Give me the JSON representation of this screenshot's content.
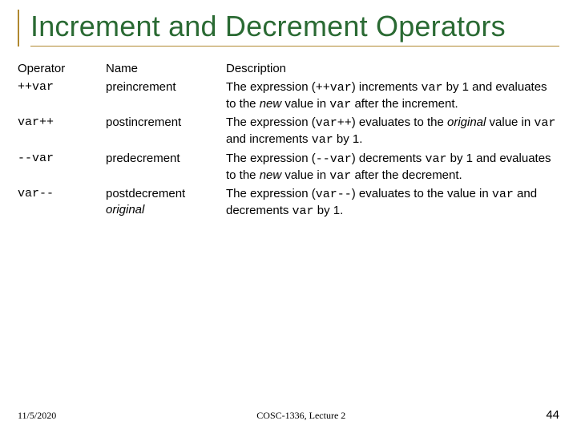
{
  "title_color": "#2a6a33",
  "title": "Increment and Decrement Operators",
  "columns": {
    "operator": "Operator",
    "name": "Name",
    "description": "Description"
  },
  "rows": [
    {
      "op": "++var",
      "name": "preincrement",
      "desc_pre": "The expression (",
      "desc_code1": "++var",
      "desc_mid1": ") increments ",
      "desc_code2": "var",
      "desc_mid2": " by 1 and evaluates to the ",
      "desc_ital": "new",
      "desc_mid3": " value in ",
      "desc_code3": "var",
      "desc_post": " after the increment."
    },
    {
      "op": "var++",
      "name": "postincrement",
      "desc_pre": "The expression (",
      "desc_code1": "var++",
      "desc_mid1": ") evaluates to the ",
      "desc_ital": "original",
      "desc_mid2": " value in ",
      "desc_code2": "var",
      "desc_mid3": " and increments ",
      "desc_code3": "var",
      "desc_post": " by 1."
    },
    {
      "op": "--var",
      "name": "predecrement",
      "desc_pre": "The expression (",
      "desc_code1": "--var",
      "desc_mid1": ") decrements ",
      "desc_code2": "var",
      "desc_mid2": " by 1 and evaluates to the ",
      "desc_ital": "new",
      "desc_mid3": " value in ",
      "desc_code3": "var",
      "desc_post": " after the decrement."
    },
    {
      "op": "var--",
      "name": "postdecrement",
      "name2": "original",
      "desc_pre": "The expression (",
      "desc_code1": "var--",
      "desc_mid1": ") evaluates to the value in ",
      "desc_code2": "var",
      "desc_mid2": " and decrements ",
      "desc_code3": "var",
      "desc_post": " by 1."
    }
  ],
  "footer": {
    "date": "11/5/2020",
    "course": "COSC-1336, Lecture 2",
    "page": "44"
  }
}
